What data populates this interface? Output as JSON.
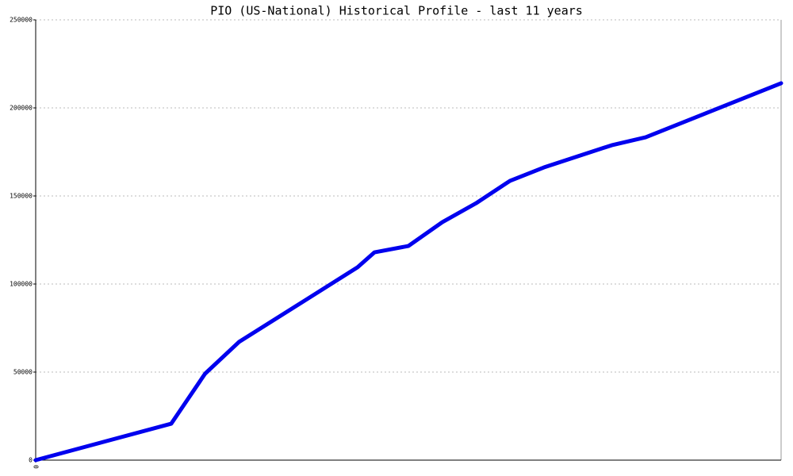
{
  "chart_data": {
    "type": "line",
    "title": "PIO (US-National) Historical Profile - last 11 years",
    "x": [
      0,
      4,
      5,
      6,
      9.5,
      10,
      11,
      12,
      13,
      14,
      15,
      16,
      17,
      18,
      22
    ],
    "series": [
      {
        "color": "#0000ee",
        "values": [
          0,
          20700,
          49100,
          67100,
          109500,
          118000,
          121600,
          135100,
          145900,
          158600,
          166200,
          172500,
          178800,
          183300,
          214000
        ]
      }
    ],
    "xlim": [
      0,
      22
    ],
    "xticks": [
      0
    ],
    "ylim": [
      0,
      250000
    ],
    "yticks": [
      0,
      50000,
      100000,
      150000,
      200000,
      250000
    ],
    "grid": true
  }
}
